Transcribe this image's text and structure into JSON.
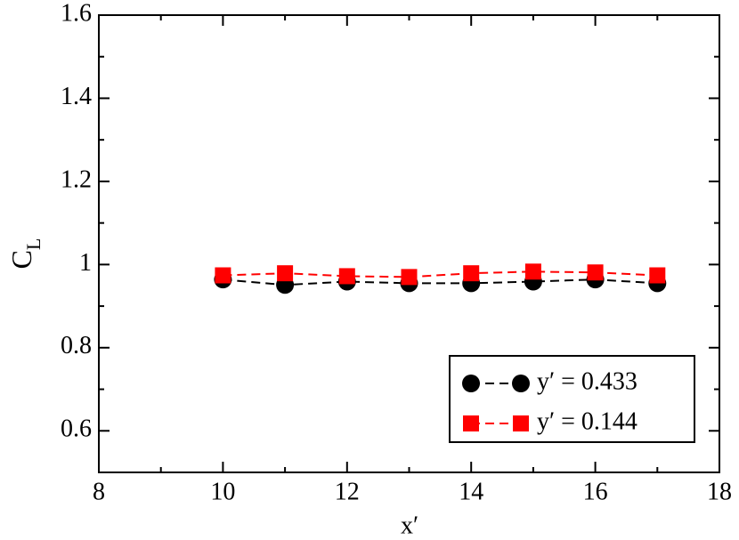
{
  "chart_data": {
    "type": "line",
    "xlabel": "x′",
    "ylabel": {
      "text": "C",
      "subscript": "L"
    },
    "xlim": [
      8,
      18
    ],
    "xticks": [
      8,
      10,
      12,
      14,
      16,
      18
    ],
    "xminorticks": [
      9,
      11,
      13,
      15,
      17
    ],
    "ylim": [
      0.5,
      1.6
    ],
    "yticks": [
      0.6,
      0.8,
      1,
      1.2,
      1.4,
      1.6
    ],
    "yminorticks": [
      0.5,
      0.7,
      0.9,
      1.1,
      1.3,
      1.5
    ],
    "grid": false,
    "legend": "lower right",
    "x": [
      10,
      11,
      12,
      13,
      14,
      15,
      16,
      17
    ],
    "series": [
      {
        "name": "y′ = 0.433",
        "color": "#000000",
        "marker": "circle",
        "values": [
          0.964,
          0.951,
          0.959,
          0.955,
          0.955,
          0.959,
          0.964,
          0.955
        ]
      },
      {
        "name": "y′ = 0.144",
        "color": "#ff0000",
        "marker": "square",
        "values": [
          0.974,
          0.979,
          0.972,
          0.97,
          0.979,
          0.983,
          0.981,
          0.974
        ]
      }
    ]
  }
}
